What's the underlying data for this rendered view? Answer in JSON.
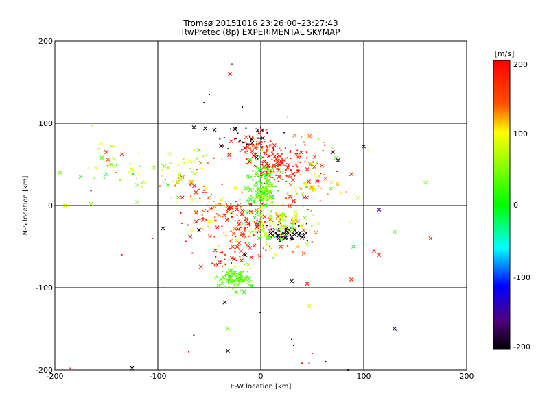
{
  "chart_data": {
    "type": "scatter",
    "title": "Tromsø 20151016 23:26:00–23:27:43",
    "subtitle": "RwPretec (8p) EXPERIMENTAL SKYMAP",
    "xlabel": "E-W location [km]",
    "ylabel": "N-S location [km]",
    "xlim": [
      -200,
      200
    ],
    "ylim": [
      -200,
      200
    ],
    "xticks": [
      "-200",
      "-100",
      "0",
      "100",
      "200"
    ],
    "yticks": [
      "-200",
      "-100",
      "0",
      "100",
      "200"
    ],
    "grid": true,
    "colorbar": {
      "label": "[m/s]",
      "range": [
        -200,
        200
      ],
      "ticks": [
        "200",
        "100",
        "0",
        "-100",
        "-200"
      ]
    },
    "marker_legend": "",
    "clusters": [
      {
        "center": [
          18,
          50
        ],
        "spread": [
          14,
          10
        ],
        "count": 120,
        "value_mean": 185,
        "value_sd": 20
      },
      {
        "center": [
          -5,
          70
        ],
        "spread": [
          12,
          8
        ],
        "count": 60,
        "value_mean": 185,
        "value_sd": 20
      },
      {
        "center": [
          0,
          20
        ],
        "spread": [
          8,
          14
        ],
        "count": 170,
        "value_mean": 30,
        "value_sd": 25
      },
      {
        "center": [
          15,
          -25
        ],
        "spread": [
          20,
          12
        ],
        "count": 150,
        "value_mean": 90,
        "value_sd": 45
      },
      {
        "center": [
          25,
          -35
        ],
        "spread": [
          12,
          6
        ],
        "count": 60,
        "value_mean": -195,
        "value_sd": 8
      },
      {
        "center": [
          -20,
          -25
        ],
        "spread": [
          18,
          18
        ],
        "count": 90,
        "value_mean": 170,
        "value_sd": 40
      },
      {
        "center": [
          -25,
          -88
        ],
        "spread": [
          8,
          7
        ],
        "count": 110,
        "value_mean": 35,
        "value_sd": 15
      },
      {
        "center": [
          -35,
          -65
        ],
        "spread": [
          10,
          6
        ],
        "count": 30,
        "value_mean": 185,
        "value_sd": 15
      },
      {
        "center": [
          -15,
          85
        ],
        "spread": [
          20,
          10
        ],
        "count": 30,
        "value_mean": -195,
        "value_sd": 5
      },
      {
        "center": [
          40,
          20
        ],
        "spread": [
          25,
          18
        ],
        "count": 60,
        "value_mean": 100,
        "value_sd": 50
      },
      {
        "center": [
          -140,
          50
        ],
        "spread": [
          18,
          15
        ],
        "count": 30,
        "value_mean": 70,
        "value_sd": 40
      },
      {
        "center": [
          -75,
          45
        ],
        "spread": [
          15,
          12
        ],
        "count": 30,
        "value_mean": 80,
        "value_sd": 30
      },
      {
        "center": [
          -60,
          20
        ],
        "spread": [
          20,
          15
        ],
        "count": 40,
        "value_mean": 120,
        "value_sd": 50
      },
      {
        "center": [
          40,
          70
        ],
        "spread": [
          30,
          15
        ],
        "count": 40,
        "value_mean": 150,
        "value_sd": 60
      },
      {
        "center": [
          -45,
          -10
        ],
        "spread": [
          20,
          15
        ],
        "count": 40,
        "value_mean": 170,
        "value_sd": 40
      }
    ],
    "points": [
      {
        "x": -30,
        "y": 160,
        "v": 190,
        "m": "x"
      },
      {
        "x": -28,
        "y": 172,
        "v": -200,
        "m": "dot"
      },
      {
        "x": -50,
        "y": 135,
        "v": -200,
        "m": "dot"
      },
      {
        "x": -55,
        "y": 125,
        "v": -200,
        "m": "dot"
      },
      {
        "x": -18,
        "y": 120,
        "v": -200,
        "m": "dot"
      },
      {
        "x": 160,
        "y": 28,
        "v": 45,
        "m": "x"
      },
      {
        "x": -120,
        "y": 4,
        "v": 40,
        "m": "x"
      },
      {
        "x": -165,
        "y": 2,
        "v": 40,
        "m": "x"
      },
      {
        "x": -190,
        "y": 0,
        "v": 80,
        "m": "x"
      },
      {
        "x": -195,
        "y": 40,
        "v": 40,
        "m": "x"
      },
      {
        "x": -175,
        "y": 35,
        "v": -20,
        "m": "x"
      },
      {
        "x": 165,
        "y": -40,
        "v": 190,
        "m": "x"
      },
      {
        "x": 130,
        "y": -32,
        "v": 40,
        "m": "x"
      },
      {
        "x": 115,
        "y": -60,
        "v": 190,
        "m": "x"
      },
      {
        "x": 110,
        "y": -55,
        "v": 190,
        "m": "x"
      },
      {
        "x": 90,
        "y": -50,
        "v": -20,
        "m": "x"
      },
      {
        "x": 115,
        "y": -5,
        "v": -150,
        "m": "x"
      },
      {
        "x": 100,
        "y": 72,
        "v": -200,
        "m": "x"
      },
      {
        "x": 75,
        "y": 55,
        "v": -200,
        "m": "x"
      },
      {
        "x": 70,
        "y": 65,
        "v": -160,
        "m": "x"
      },
      {
        "x": 88,
        "y": 38,
        "v": 190,
        "m": "x"
      },
      {
        "x": 88,
        "y": -90,
        "v": 190,
        "m": "x"
      },
      {
        "x": 130,
        "y": -150,
        "v": -170,
        "m": "x"
      },
      {
        "x": 47,
        "y": -122,
        "v": 90,
        "m": "x"
      },
      {
        "x": 45,
        "y": -95,
        "v": 190,
        "m": "x"
      },
      {
        "x": 30,
        "y": -92,
        "v": -200,
        "m": "x"
      },
      {
        "x": -35,
        "y": -118,
        "v": -200,
        "m": "x"
      },
      {
        "x": -32,
        "y": -150,
        "v": 40,
        "m": "x"
      },
      {
        "x": -32,
        "y": -177,
        "v": -200,
        "m": "x"
      },
      {
        "x": -1,
        "y": -130,
        "v": -150,
        "m": "dot"
      },
      {
        "x": 30,
        "y": -163,
        "v": -200,
        "m": "dot"
      },
      {
        "x": 32,
        "y": -170,
        "v": -200,
        "m": "dot"
      },
      {
        "x": 63,
        "y": -190,
        "v": -200,
        "m": "dot"
      },
      {
        "x": 40,
        "y": -192,
        "v": 190,
        "m": "dot"
      },
      {
        "x": 47,
        "y": -192,
        "v": 190,
        "m": "dot"
      },
      {
        "x": -125,
        "y": -198,
        "v": -200,
        "m": "x"
      },
      {
        "x": -185,
        "y": -198,
        "v": 190,
        "m": "dot"
      },
      {
        "x": 85,
        "y": -200,
        "v": -200,
        "m": "dot"
      },
      {
        "x": -135,
        "y": -60,
        "v": 190,
        "m": "dot"
      },
      {
        "x": -105,
        "y": -40,
        "v": 190,
        "m": "dot"
      },
      {
        "x": -95,
        "y": -100,
        "v": 190,
        "m": "dot"
      },
      {
        "x": -65,
        "y": -158,
        "v": -200,
        "m": "dot"
      },
      {
        "x": -70,
        "y": -178,
        "v": 190,
        "m": "dot"
      },
      {
        "x": 50,
        "y": -180,
        "v": 190,
        "m": "dot"
      },
      {
        "x": -150,
        "y": 65,
        "v": 190,
        "m": "x"
      },
      {
        "x": -135,
        "y": 62,
        "v": 170,
        "m": "x"
      },
      {
        "x": -145,
        "y": 72,
        "v": 60,
        "m": "x"
      },
      {
        "x": -155,
        "y": 75,
        "v": 100,
        "m": "x"
      },
      {
        "x": -150,
        "y": 38,
        "v": -20,
        "m": "x"
      },
      {
        "x": -145,
        "y": 50,
        "v": 40,
        "m": "x"
      },
      {
        "x": -115,
        "y": 28,
        "v": 60,
        "m": "x"
      },
      {
        "x": -120,
        "y": 25,
        "v": 40,
        "m": "x"
      },
      {
        "x": -165,
        "y": 18,
        "v": -200,
        "m": "dot"
      },
      {
        "x": -90,
        "y": 25,
        "v": 20,
        "m": "x"
      },
      {
        "x": -80,
        "y": 10,
        "v": 40,
        "m": "x"
      },
      {
        "x": -90,
        "y": 46,
        "v": 60,
        "m": "x"
      },
      {
        "x": -65,
        "y": 95,
        "v": -200,
        "m": "x"
      },
      {
        "x": -45,
        "y": 92,
        "v": -200,
        "m": "x"
      },
      {
        "x": -25,
        "y": 93,
        "v": -200,
        "m": "x"
      },
      {
        "x": -60,
        "y": -30,
        "v": -200,
        "m": "x"
      },
      {
        "x": -95,
        "y": -28,
        "v": -200,
        "m": "x"
      },
      {
        "x": -15,
        "y": -60,
        "v": -200,
        "m": "x"
      }
    ]
  }
}
